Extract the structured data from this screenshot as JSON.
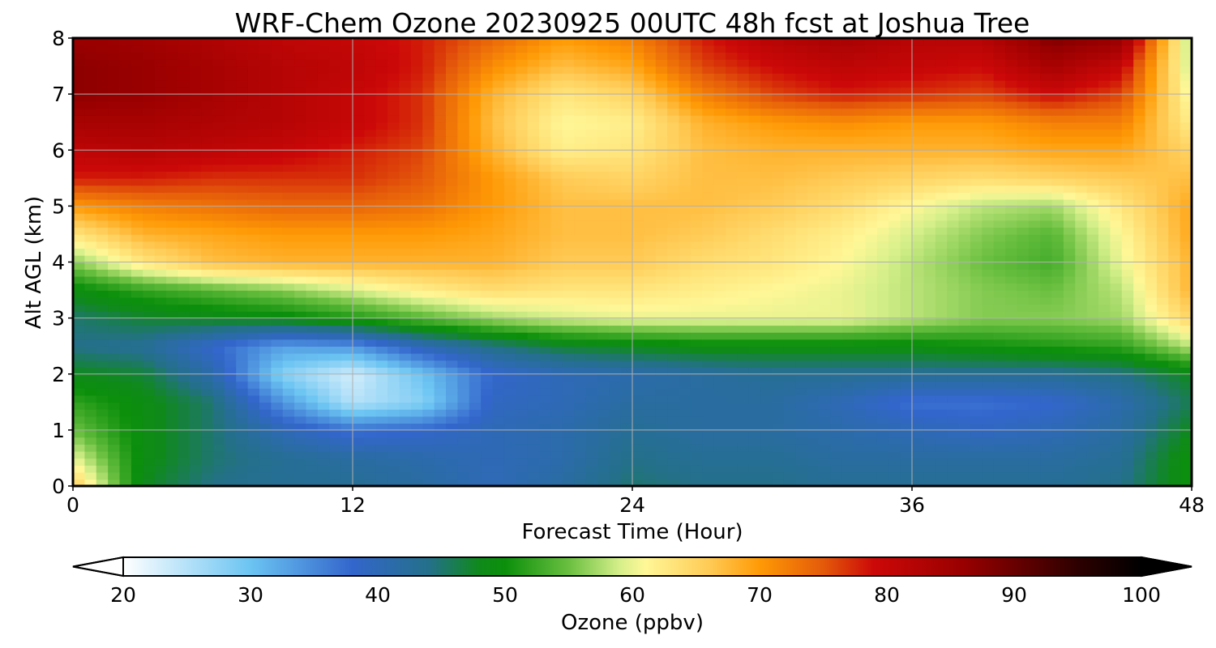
{
  "chart_data": {
    "type": "heatmap",
    "title": "WRF-Chem Ozone  20230925 00UTC 48h fcst at Joshua Tree",
    "xlabel": "Forecast Time (Hour)",
    "ylabel": "Alt AGL (km)",
    "x_ticks": [
      0,
      12,
      24,
      36,
      48
    ],
    "y_ticks": [
      0,
      1,
      2,
      3,
      4,
      5,
      6,
      7,
      8
    ],
    "xlim": [
      0,
      48
    ],
    "ylim": [
      0,
      8
    ],
    "grid": true,
    "x": [
      0,
      3,
      6,
      9,
      12,
      15,
      18,
      21,
      24,
      27,
      30,
      33,
      36,
      39,
      42,
      45,
      48
    ],
    "y": [
      0,
      0.5,
      1,
      1.5,
      2,
      2.5,
      3,
      3.5,
      4,
      4.5,
      5,
      5.5,
      6,
      6.5,
      7,
      7.5,
      8
    ],
    "z": [
      [
        66,
        48,
        44,
        43,
        43,
        42,
        40,
        42,
        45,
        44,
        44,
        43,
        43,
        43,
        43,
        44,
        50
      ],
      [
        60,
        49,
        45,
        43,
        42,
        41,
        40,
        41,
        44,
        43,
        43,
        42,
        42,
        42,
        42,
        43,
        50
      ],
      [
        55,
        49,
        45,
        40,
        37,
        38,
        40,
        41,
        43,
        42,
        42,
        41,
        40,
        39,
        40,
        42,
        48
      ],
      [
        52,
        49,
        45,
        34,
        25,
        28,
        39,
        40,
        42,
        42,
        42,
        40,
        37,
        37,
        38,
        41,
        46
      ],
      [
        48,
        47,
        41,
        28,
        23,
        30,
        38,
        40,
        41,
        42,
        43,
        43,
        43,
        43,
        43,
        44,
        48
      ],
      [
        44,
        43,
        38,
        33,
        34,
        40,
        44,
        47,
        48,
        49,
        49,
        49,
        49,
        50,
        51,
        52,
        58
      ],
      [
        45,
        47,
        48,
        49,
        51,
        54,
        57,
        59,
        60,
        60,
        60,
        60,
        58,
        56,
        56,
        57,
        65
      ],
      [
        49,
        52,
        54,
        56,
        59,
        62,
        64,
        63,
        63,
        62,
        61,
        60,
        58,
        56,
        55,
        58,
        68
      ],
      [
        56,
        63,
        67,
        68,
        68,
        68,
        68,
        66,
        66,
        64,
        63,
        61,
        58,
        55,
        53,
        60,
        68
      ],
      [
        63,
        68,
        69,
        70,
        70,
        70,
        69,
        67,
        67,
        66,
        64,
        62,
        59,
        56,
        54,
        61,
        69
      ],
      [
        70,
        72,
        73,
        74,
        74,
        73,
        70,
        67,
        67,
        67,
        66,
        64,
        61,
        58,
        57,
        63,
        69
      ],
      [
        78,
        78,
        77,
        77,
        77,
        75,
        70,
        66,
        65,
        67,
        67,
        66,
        65,
        64,
        65,
        66,
        67
      ],
      [
        81,
        82,
        81,
        80,
        78,
        76,
        68,
        62,
        63,
        67,
        68,
        68,
        68,
        68,
        69,
        69,
        65
      ],
      [
        84,
        84,
        83,
        82,
        80,
        77,
        67,
        61,
        62,
        68,
        70,
        71,
        70,
        70,
        72,
        72,
        62
      ],
      [
        87,
        86,
        84,
        82,
        80,
        77,
        68,
        63,
        65,
        72,
        76,
        78,
        77,
        76,
        79,
        76,
        60
      ],
      [
        87,
        86,
        84,
        82,
        81,
        78,
        71,
        67,
        69,
        76,
        79,
        81,
        80,
        79,
        84,
        80,
        58
      ],
      [
        86,
        85,
        83,
        81,
        80,
        78,
        74,
        70,
        72,
        78,
        82,
        84,
        82,
        82,
        88,
        86,
        57
      ]
    ],
    "colorbar": {
      "label": "Ozone  (ppbv)",
      "ticks": [
        20,
        30,
        40,
        50,
        60,
        70,
        80,
        90,
        100
      ],
      "range": [
        20,
        100
      ],
      "extend": "both",
      "colors": {
        "20": "#ffffff",
        "30": "#6bc4f2",
        "38": "#3366cc",
        "44": "#24708a",
        "48": "#0f8a1a",
        "50": "#0b8f0b",
        "55": "#6abf40",
        "59": "#d5ef8a",
        "61": "#fff797",
        "66": "#ffcb56",
        "70": "#ff9a05",
        "75": "#e45a0a",
        "79": "#cc0808",
        "86": "#990000",
        "95": "#2d0000",
        "100": "#000000"
      }
    }
  }
}
